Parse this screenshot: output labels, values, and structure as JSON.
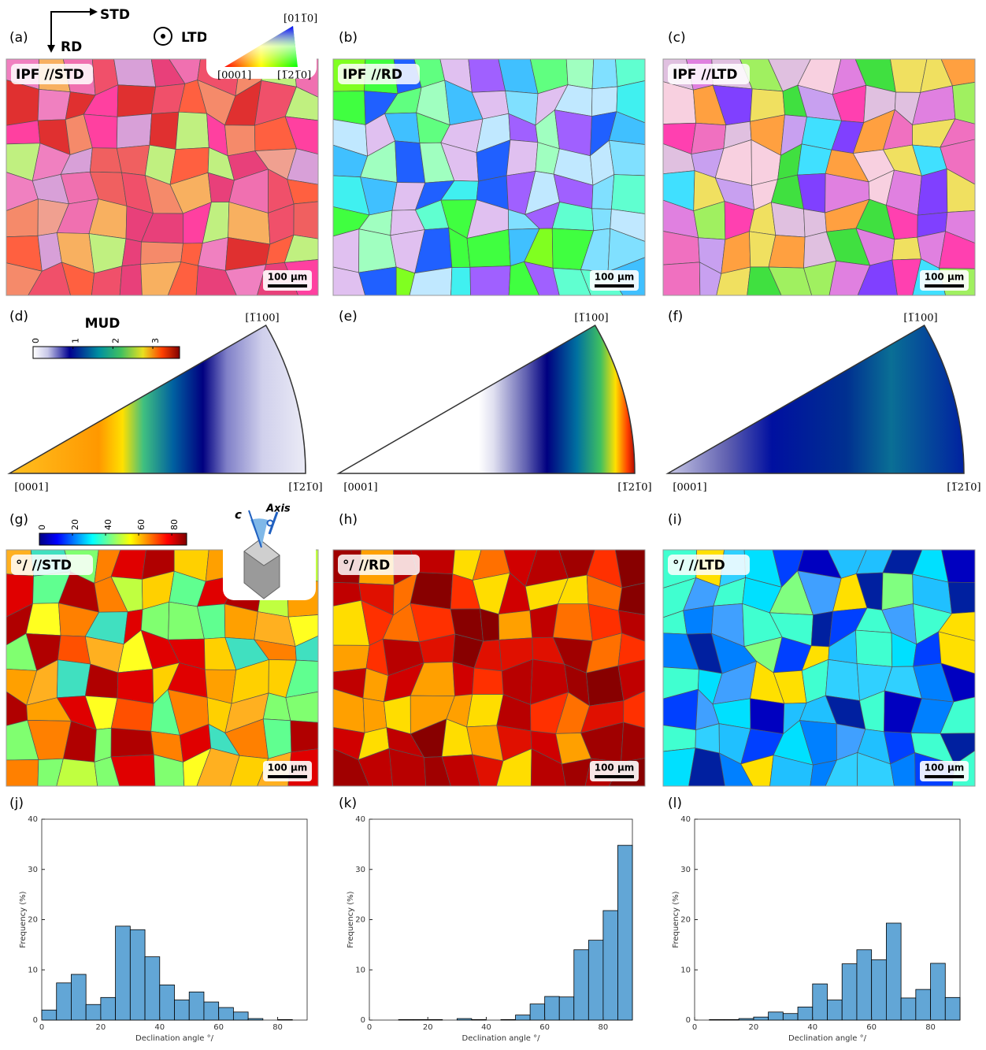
{
  "panel_labels": [
    "(a)",
    "(b)",
    "(c)",
    "(d)",
    "(e)",
    "(f)",
    "(g)",
    "(h)",
    "(i)",
    "(j)",
    "(k)",
    "(l)"
  ],
  "axes_key": {
    "horizontal": "STD",
    "vertical": "RD",
    "out_of_plane": "LTD"
  },
  "ipf_key": {
    "top": "[011̅0]",
    "left": "[0001]",
    "right": "[1̅21̅0]"
  },
  "map_titles": [
    "IPF //STD",
    "IPF //RD",
    "IPF //LTD",
    "°/ //STD",
    "°/ //RD",
    "°/ //LTD"
  ],
  "scale_bar": "100 μm",
  "mud_legend": {
    "title": "MUD",
    "range": [
      0,
      3.67
    ],
    "ticks": [
      0,
      1,
      2,
      3
    ]
  },
  "sector_labels": {
    "top": "[1̅100]",
    "left": "[0001]",
    "right": "[1̅21̅0]"
  },
  "angle_legend": {
    "range": [
      0,
      89
    ],
    "ticks": [
      0,
      20,
      40,
      60,
      80
    ]
  },
  "crystal_key": {
    "c": "c",
    "axis": "Axis"
  },
  "chart_data": [
    {
      "type": "histogram",
      "x_label": "Declination angle °/",
      "y_label": "Frequency (%)",
      "color": "#62a6d6",
      "bins": [
        0,
        5,
        10,
        15,
        20,
        25,
        30,
        35,
        40,
        45,
        50,
        55,
        60,
        65,
        70,
        75,
        80,
        85,
        90
      ],
      "values": [
        2,
        7.4,
        9.1,
        3.1,
        4.5,
        18.7,
        18,
        12.6,
        7,
        4,
        5.6,
        3.6,
        2.5,
        1.6,
        0.3,
        0,
        0.1,
        0
      ],
      "xlim": [
        0,
        90
      ],
      "xticks": [
        0,
        20,
        40,
        60,
        80
      ],
      "ylim": [
        0,
        40
      ],
      "yticks": [
        0,
        10,
        20,
        30,
        40
      ]
    },
    {
      "type": "histogram",
      "x_label": "Declination angle °/",
      "y_label": "Frequency (%)",
      "color": "#62a6d6",
      "bins": [
        0,
        5,
        10,
        15,
        20,
        25,
        30,
        35,
        40,
        45,
        50,
        55,
        60,
        65,
        70,
        75,
        80,
        85,
        90
      ],
      "values": [
        0,
        0,
        0.1,
        0.1,
        0.1,
        0,
        0.3,
        0.1,
        0,
        0.1,
        1,
        3.2,
        4.7,
        4.6,
        14,
        15.9,
        21.8,
        34.8
      ],
      "xlim": [
        0,
        90
      ],
      "xticks": [
        0,
        20,
        40,
        60,
        80
      ],
      "ylim": [
        0,
        40
      ],
      "yticks": [
        0,
        10,
        20,
        30,
        40
      ]
    },
    {
      "type": "histogram",
      "x_label": "Declination angle °/",
      "y_label": "Frequency (%)",
      "color": "#62a6d6",
      "bins": [
        0,
        5,
        10,
        15,
        20,
        25,
        30,
        35,
        40,
        45,
        50,
        55,
        60,
        65,
        70,
        75,
        80,
        85,
        90
      ],
      "values": [
        0,
        0.1,
        0.1,
        0.3,
        0.6,
        1.6,
        1.3,
        2.6,
        7.2,
        4,
        11.2,
        14,
        12,
        19.3,
        4.4,
        6.1,
        11.3,
        4.5
      ],
      "xlim": [
        0,
        90
      ],
      "xticks": [
        0,
        20,
        40,
        60,
        80
      ],
      "ylim": [
        0,
        40
      ],
      "yticks": [
        0,
        10,
        20,
        30,
        40
      ]
    }
  ]
}
